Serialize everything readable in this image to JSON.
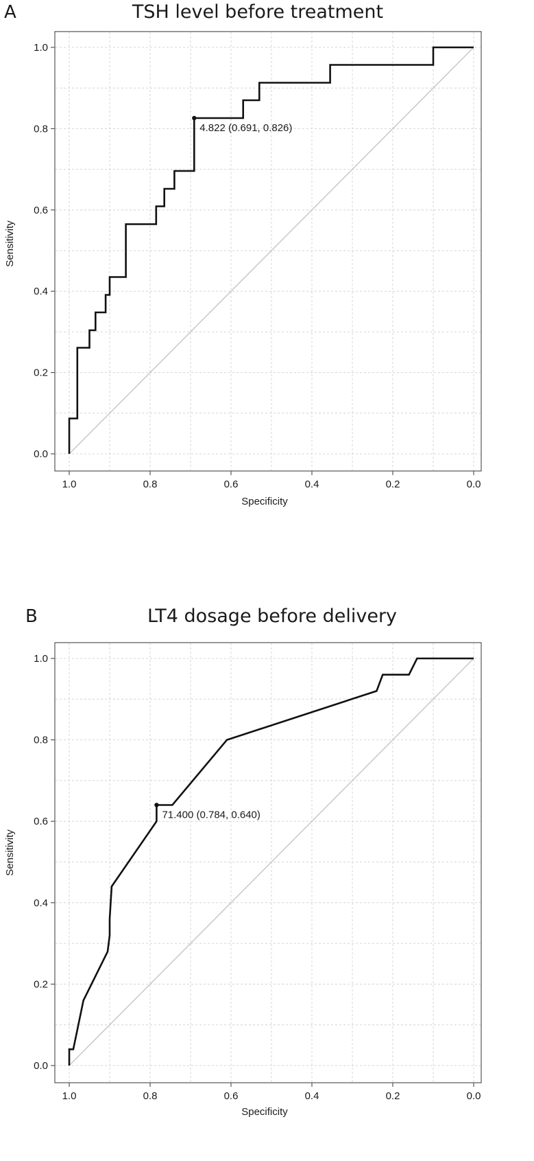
{
  "chart_data": [
    {
      "type": "line",
      "panel_label": "A",
      "title": "TSH level before treatment",
      "xlabel": "Specificity",
      "ylabel": "Sensitivity",
      "xlim": [
        1.0,
        0.0
      ],
      "ylim": [
        0.0,
        1.0
      ],
      "x_reversed": true,
      "xticks": [
        "1.0",
        "0.8",
        "0.6",
        "0.4",
        "0.2",
        "0.0"
      ],
      "yticks": [
        "0.0",
        "0.2",
        "0.4",
        "0.6",
        "0.8",
        "1.0"
      ],
      "grid": true,
      "diagonal": true,
      "series": [
        {
          "x": [
            1.0,
            1.0,
            0.98,
            0.98,
            0.95,
            0.95,
            0.935,
            0.935,
            0.91,
            0.91,
            0.9,
            0.9,
            0.885,
            0.885,
            0.86,
            0.86,
            0.785,
            0.785,
            0.765,
            0.765,
            0.74,
            0.74,
            0.691,
            0.691,
            0.57,
            0.57,
            0.53,
            0.53,
            0.355,
            0.355,
            0.1,
            0.1,
            0.0
          ],
          "y": [
            0.0,
            0.087,
            0.087,
            0.261,
            0.261,
            0.304,
            0.304,
            0.348,
            0.348,
            0.391,
            0.391,
            0.435,
            0.435,
            0.435,
            0.435,
            0.565,
            0.565,
            0.609,
            0.609,
            0.652,
            0.652,
            0.696,
            0.696,
            0.826,
            0.826,
            0.87,
            0.87,
            0.913,
            0.913,
            0.957,
            0.957,
            1.0,
            1.0
          ]
        }
      ],
      "cutoff": {
        "x": 0.691,
        "y": 0.826,
        "label": "4.822 (0.691, 0.826)"
      }
    },
    {
      "type": "line",
      "panel_label": "B",
      "title": "LT4 dosage before delivery",
      "xlabel": "Specificity",
      "ylabel": "Sensitivity",
      "xlim": [
        1.0,
        0.0
      ],
      "ylim": [
        0.0,
        1.0
      ],
      "x_reversed": true,
      "xticks": [
        "1.0",
        "0.8",
        "0.6",
        "0.4",
        "0.2",
        "0.0"
      ],
      "yticks": [
        "0.0",
        "0.2",
        "0.4",
        "0.6",
        "0.8",
        "1.0"
      ],
      "grid": true,
      "diagonal": true,
      "series": [
        {
          "x": [
            1.0,
            1.0,
            0.99,
            0.965,
            0.905,
            0.9,
            0.9,
            0.895,
            0.784,
            0.784,
            0.745,
            0.61,
            0.24,
            0.225,
            0.16,
            0.14,
            0.0
          ],
          "y": [
            0.0,
            0.04,
            0.04,
            0.16,
            0.28,
            0.32,
            0.36,
            0.44,
            0.6,
            0.64,
            0.64,
            0.8,
            0.92,
            0.96,
            0.96,
            1.0,
            1.0
          ]
        }
      ],
      "cutoff": {
        "x": 0.784,
        "y": 0.64,
        "label": "71.400 (0.784, 0.640)"
      }
    }
  ]
}
